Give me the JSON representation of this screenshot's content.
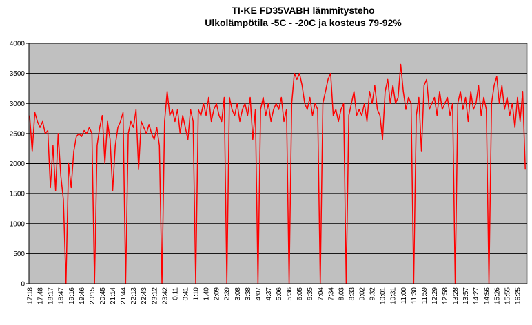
{
  "chart_data": {
    "type": "line",
    "title": "TI-KE FD35VABH lämmitysteho",
    "subtitle": "Ulkolämpötila  -5C - -20C ja kosteus 79-92%",
    "categories": [
      "17:18",
      null,
      null,
      null,
      "17:48",
      null,
      null,
      null,
      "18:17",
      null,
      null,
      null,
      "18:47",
      null,
      null,
      null,
      "19:16",
      null,
      null,
      null,
      "19:46",
      null,
      null,
      null,
      "20:15",
      null,
      null,
      null,
      "20:45",
      null,
      null,
      null,
      "21:14",
      null,
      null,
      null,
      "21:44",
      null,
      null,
      null,
      "22:13",
      null,
      null,
      null,
      "22:43",
      null,
      null,
      null,
      "23:12",
      null,
      null,
      null,
      "23:42",
      null,
      null,
      null,
      "0:11",
      null,
      null,
      null,
      "0:41",
      null,
      null,
      null,
      "1:10",
      null,
      null,
      null,
      "1:40",
      null,
      null,
      null,
      "2:09",
      null,
      null,
      null,
      "2:39",
      null,
      null,
      null,
      "3:08",
      null,
      null,
      null,
      "3:38",
      null,
      null,
      null,
      "4:07",
      null,
      null,
      null,
      "4:37",
      null,
      null,
      null,
      "5:06",
      null,
      null,
      null,
      "5:36",
      null,
      null,
      null,
      "6:05",
      null,
      null,
      null,
      "6:35",
      null,
      null,
      null,
      "7:04",
      null,
      null,
      null,
      "7:34",
      null,
      null,
      null,
      "8:03",
      null,
      null,
      null,
      "8:33",
      null,
      null,
      null,
      "9:02",
      null,
      null,
      null,
      "9:32",
      null,
      null,
      null,
      "10:01",
      null,
      null,
      null,
      "10:31",
      null,
      null,
      null,
      "11:00",
      null,
      null,
      null,
      "11:30",
      null,
      null,
      null,
      "11:59",
      null,
      null,
      null,
      "12:29",
      null,
      null,
      null,
      "12:58",
      null,
      null,
      null,
      "13:28",
      null,
      null,
      null,
      "13:57",
      null,
      null,
      null,
      "14:27",
      null,
      null,
      null,
      "14:56",
      null,
      null,
      null,
      "15:26",
      null,
      null,
      null,
      "15:55",
      null,
      null,
      null,
      "16:25",
      null,
      null,
      null
    ],
    "series": [
      {
        "name": "lämmitysteho",
        "color": "#ff0000",
        "values": [
          2800,
          2200,
          2850,
          2700,
          2600,
          2700,
          2500,
          2550,
          1600,
          2300,
          1550,
          2500,
          1800,
          1400,
          0,
          2000,
          1600,
          2200,
          2450,
          2500,
          2450,
          2550,
          2500,
          2600,
          2500,
          0,
          2300,
          2600,
          2800,
          2000,
          2700,
          2400,
          1550,
          2300,
          2600,
          2700,
          2850,
          0,
          2500,
          2700,
          2600,
          2900,
          1900,
          2700,
          2600,
          2500,
          2650,
          2500,
          2400,
          2600,
          2300,
          0,
          2700,
          3200,
          2800,
          2900,
          2700,
          2900,
          2500,
          2800,
          2600,
          2400,
          2900,
          2700,
          0,
          2900,
          2800,
          3000,
          2800,
          3100,
          2700,
          2900,
          3000,
          2800,
          2700,
          3100,
          0,
          3100,
          2900,
          2800,
          3000,
          2700,
          2900,
          3000,
          2800,
          3100,
          2400,
          2900,
          0,
          2900,
          3100,
          2800,
          3000,
          2700,
          2900,
          3000,
          2900,
          3100,
          2700,
          2900,
          0,
          3000,
          3500,
          3400,
          3500,
          3300,
          3000,
          2900,
          3100,
          2800,
          3000,
          2900,
          0,
          3000,
          3200,
          3400,
          3500,
          2800,
          2900,
          2700,
          2900,
          3000,
          0,
          2800,
          3000,
          3200,
          2800,
          2900,
          2800,
          3000,
          2700,
          3200,
          3000,
          3300,
          2900,
          2800,
          2400,
          3200,
          3400,
          3000,
          3300,
          3000,
          3100,
          3650,
          3200,
          2900,
          3100,
          3000,
          0,
          2800,
          3100,
          2200,
          3300,
          3400,
          2900,
          3000,
          3100,
          2800,
          3200,
          2900,
          3000,
          3100,
          2800,
          3000,
          0,
          3000,
          3200,
          2900,
          3100,
          2700,
          3200,
          2900,
          3000,
          3300,
          2800,
          3100,
          2900,
          0,
          3000,
          3300,
          3450,
          3000,
          3300,
          2900,
          3100,
          2800,
          3000,
          2600,
          3100,
          2700,
          3200,
          1900
        ]
      }
    ],
    "ylim": [
      0,
      4000
    ],
    "yticks": [
      0,
      500,
      1000,
      1500,
      2000,
      2500,
      3000,
      3500,
      4000
    ],
    "grid": true
  }
}
